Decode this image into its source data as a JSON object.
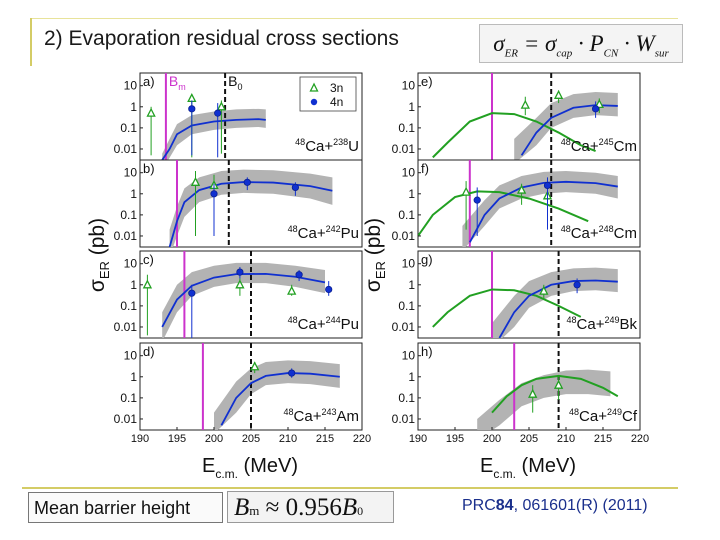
{
  "slide": {
    "title": "2) Evaporation residual cross sections",
    "formula": {
      "sigma": "σ",
      "er_sub": "ER",
      "eq": " = ",
      "cap_sub": "cap",
      "dot": " · ",
      "P": "P",
      "cn_sub": "CN",
      "W": "W",
      "sur_sub": "sur"
    },
    "footer_label": "Mean barrier height",
    "footer_formula": {
      "B": "B",
      "m": "m",
      "approx": " ≈ 0.956",
      "B0": "B",
      "zero": "0"
    },
    "reference": {
      "journal": "PRC",
      "volume": "84",
      "rest": ", 061601(R) (2011)"
    }
  },
  "chart_data": {
    "type": "line",
    "x_range": [
      190,
      220
    ],
    "y_scale": "log",
    "y_range": [
      0.003,
      40
    ],
    "xticks": [
      "190",
      "195",
      "200",
      "205",
      "210",
      "215",
      "220"
    ],
    "yticks": [
      "10",
      "1",
      "0.1",
      "0.01"
    ],
    "xlabel": {
      "main": "E",
      "sub": "c.m.",
      "unit": " (MeV)"
    },
    "ylabel": {
      "main": "σ",
      "sub": "ER",
      "unit": " (pb)"
    },
    "legend": {
      "items": [
        {
          "name": "3n",
          "symbol": "triangle",
          "color": "#22a022"
        },
        {
          "name": "4n",
          "symbol": "circle",
          "color": "#1030d0"
        }
      ],
      "placement": "top-right"
    },
    "panels": [
      {
        "id": "a",
        "label": "a)",
        "reaction": {
          "pre": "48",
          "a": "Ca+",
          "post": "238",
          "b": "U"
        },
        "column": 0,
        "row": 0,
        "bm": 193.5,
        "bm_label": "B",
        "bm_sub": "m",
        "b0": 201.5,
        "b0_label": "B",
        "b0_sub": "0",
        "legend": true,
        "curve_4n": [
          [
            193,
            0.003
          ],
          [
            194,
            0.01
          ],
          [
            195,
            0.05
          ],
          [
            197,
            0.13
          ],
          [
            200,
            0.2
          ],
          [
            203,
            0.24
          ],
          [
            206,
            0.26
          ],
          [
            207,
            0.24
          ]
        ],
        "band": [
          [
            193,
            0.001,
            0.006
          ],
          [
            195,
            0.015,
            0.15
          ],
          [
            197,
            0.05,
            0.4
          ],
          [
            200,
            0.08,
            0.6
          ],
          [
            203,
            0.1,
            0.75
          ],
          [
            206,
            0.11,
            0.8
          ],
          [
            207,
            0.1,
            0.75
          ]
        ],
        "points_3n": [
          [
            191.5,
            0.5,
            0.005,
            1
          ],
          [
            197,
            2.5,
            0.004,
            4
          ],
          [
            201,
            1.0,
            0.006,
            2
          ]
        ],
        "points_4n": [
          [
            197,
            0.8,
            0.005,
            2
          ],
          [
            200.5,
            0.5,
            0.004,
            1.5
          ]
        ]
      },
      {
        "id": "b",
        "label": "b)",
        "reaction": {
          "pre": "48",
          "a": "Ca+",
          "post": "242",
          "b": "Pu"
        },
        "column": 0,
        "row": 1,
        "bm": 195.0,
        "b0": 202.0,
        "curve_4n": [
          [
            194,
            0.003
          ],
          [
            195,
            0.05
          ],
          [
            196,
            0.4
          ],
          [
            198,
            1.5
          ],
          [
            201,
            3.0
          ],
          [
            204,
            3.6
          ],
          [
            208,
            3.4
          ],
          [
            213,
            2.3
          ],
          [
            216,
            1.4
          ]
        ],
        "band": [
          [
            194,
            0.001,
            0.02
          ],
          [
            195,
            0.01,
            0.25
          ],
          [
            196,
            0.08,
            1.8
          ],
          [
            198,
            0.4,
            6
          ],
          [
            201,
            0.9,
            12
          ],
          [
            204,
            1.1,
            14
          ],
          [
            208,
            1.0,
            13
          ],
          [
            213,
            0.6,
            9
          ],
          [
            216,
            0.3,
            6
          ]
        ],
        "points_3n": [
          [
            197.5,
            3.5,
            0.01,
            12
          ],
          [
            200,
            2.5,
            0.02,
            8
          ]
        ],
        "points_4n": [
          [
            200,
            1.0,
            0.01,
            3
          ],
          [
            204.5,
            3.5,
            1.5,
            6
          ],
          [
            211,
            2.0,
            0.8,
            3.5
          ]
        ]
      },
      {
        "id": "c",
        "label": "c)",
        "reaction": {
          "pre": "48",
          "a": "Ca+",
          "post": "244",
          "b": "Pu"
        },
        "column": 0,
        "row": 2,
        "bm": 196.0,
        "b0": 205.0,
        "curve_4n": [
          [
            193,
            0.01
          ],
          [
            195,
            0.2
          ],
          [
            197,
            0.9
          ],
          [
            200,
            2.2
          ],
          [
            203,
            3.2
          ],
          [
            207,
            3.3
          ],
          [
            211,
            2.4
          ],
          [
            215,
            1.3
          ]
        ],
        "band": [
          [
            193,
            0.002,
            0.05
          ],
          [
            195,
            0.05,
            1
          ],
          [
            197,
            0.3,
            4
          ],
          [
            200,
            0.8,
            8
          ],
          [
            203,
            1.2,
            11
          ],
          [
            207,
            1.2,
            11
          ],
          [
            211,
            0.8,
            8
          ],
          [
            215,
            0.4,
            5
          ]
        ],
        "points_3n": [
          [
            191,
            1.0,
            0.004,
            3
          ],
          [
            203.5,
            1.0,
            0.3,
            2
          ],
          [
            210.5,
            0.5,
            0.3,
            1
          ]
        ],
        "points_4n": [
          [
            197,
            0.4,
            0.003,
            1
          ],
          [
            203.5,
            4.0,
            2,
            7
          ],
          [
            211.5,
            3.0,
            1.5,
            5
          ],
          [
            215.5,
            0.6,
            0.3,
            1.5
          ]
        ]
      },
      {
        "id": "d",
        "label": "d)",
        "reaction": {
          "pre": "48",
          "a": "Ca+",
          "post": "243",
          "b": "Am"
        },
        "column": 0,
        "row": 3,
        "bm": 198.5,
        "b0": 205.0,
        "curve_4n": [
          [
            201,
            0.005
          ],
          [
            203,
            0.1
          ],
          [
            205,
            0.5
          ],
          [
            207,
            1.1
          ],
          [
            210,
            1.5
          ],
          [
            213,
            1.4
          ],
          [
            217,
            1.0
          ]
        ],
        "band": [
          [
            200,
            0.002,
            0.02
          ],
          [
            203,
            0.02,
            0.6
          ],
          [
            205,
            0.15,
            2.5
          ],
          [
            207,
            0.4,
            5
          ],
          [
            210,
            0.5,
            6
          ],
          [
            213,
            0.45,
            5.5
          ],
          [
            217,
            0.3,
            4
          ]
        ],
        "points_3n": [
          [
            205.5,
            3.0,
            1.5,
            5
          ]
        ],
        "points_4n": [
          [
            210.5,
            1.5,
            0.9,
            2.5
          ]
        ]
      },
      {
        "id": "e",
        "label": "e)",
        "reaction": {
          "pre": "48",
          "a": "Ca+",
          "post": "245",
          "b": "Cm"
        },
        "column": 1,
        "row": 0,
        "bm": 200.0,
        "b0": 208.0,
        "curve_4n": [
          [
            204,
            0.005
          ],
          [
            206,
            0.06
          ],
          [
            208,
            0.3
          ],
          [
            211,
            0.9
          ],
          [
            214,
            1.2
          ],
          [
            217,
            1.1
          ]
        ],
        "band": [
          [
            203,
            0.002,
            0.03
          ],
          [
            206,
            0.015,
            0.3
          ],
          [
            208,
            0.1,
            1.5
          ],
          [
            211,
            0.3,
            4
          ],
          [
            214,
            0.4,
            5
          ],
          [
            217,
            0.35,
            4.5
          ]
        ],
        "curve_3n": [
          [
            192,
            0.004
          ],
          [
            194,
            0.02
          ],
          [
            197,
            0.2
          ],
          [
            200,
            0.5
          ],
          [
            203,
            0.45
          ],
          [
            206,
            0.2
          ],
          [
            209,
            0.06
          ],
          [
            212,
            0.015
          ],
          [
            214,
            0.008
          ]
        ],
        "points_3n": [
          [
            204.5,
            1.2,
            0.4,
            3
          ],
          [
            209,
            3.5,
            1.5,
            6
          ],
          [
            214.5,
            1.3,
            0.5,
            2.5
          ]
        ],
        "points_4n": [
          [
            214,
            0.8,
            0.3,
            1.8
          ]
        ]
      },
      {
        "id": "f",
        "label": "f)",
        "reaction": {
          "pre": "48",
          "a": "Ca+",
          "post": "248",
          "b": "Cm"
        },
        "column": 1,
        "row": 1,
        "bm": 197.0,
        "b0": 208.0,
        "curve_4n": [
          [
            197,
            0.005
          ],
          [
            199,
            0.1
          ],
          [
            201,
            0.6
          ],
          [
            204,
            2.0
          ],
          [
            207,
            3.3
          ],
          [
            210,
            3.7
          ],
          [
            214,
            3.2
          ],
          [
            217,
            2.2
          ]
        ],
        "band": [
          [
            196,
            0.002,
            0.03
          ],
          [
            199,
            0.03,
            0.5
          ],
          [
            201,
            0.2,
            2.5
          ],
          [
            204,
            0.6,
            7
          ],
          [
            207,
            1.0,
            11
          ],
          [
            210,
            1.2,
            12
          ],
          [
            214,
            1.0,
            10
          ],
          [
            217,
            0.6,
            7
          ]
        ],
        "curve_3n": [
          [
            190,
            0.01
          ],
          [
            192,
            0.1
          ],
          [
            195,
            0.7
          ],
          [
            198,
            1.3
          ],
          [
            201,
            1.2
          ],
          [
            205,
            0.6
          ],
          [
            209,
            0.2
          ],
          [
            213,
            0.05
          ]
        ],
        "points_3n": [
          [
            196.5,
            1.2,
            0.02,
            4
          ],
          [
            204,
            1.5,
            0.3,
            3
          ],
          [
            207.5,
            0.8,
            0.4,
            1.5
          ]
        ],
        "points_4n": [
          [
            198,
            0.5,
            0.01,
            2
          ],
          [
            207.5,
            2.5,
            0.02,
            6
          ]
        ]
      },
      {
        "id": "g",
        "label": "g)",
        "reaction": {
          "pre": "48",
          "a": "Ca+",
          "post": "249",
          "b": "Bk"
        },
        "column": 1,
        "row": 2,
        "bm": 200.0,
        "b0": 209.0,
        "curve_4n": [
          [
            201,
            0.003
          ],
          [
            203,
            0.05
          ],
          [
            205,
            0.3
          ],
          [
            208,
            1.0
          ],
          [
            211,
            1.5
          ],
          [
            214,
            1.6
          ],
          [
            217,
            1.4
          ]
        ],
        "band": [
          [
            200,
            0.001,
            0.015
          ],
          [
            203,
            0.01,
            0.3
          ],
          [
            205,
            0.08,
            1.5
          ],
          [
            208,
            0.3,
            4
          ],
          [
            211,
            0.5,
            6
          ],
          [
            214,
            0.55,
            6.5
          ],
          [
            217,
            0.45,
            5.5
          ]
        ],
        "curve_3n": [
          [
            192,
            0.01
          ],
          [
            194,
            0.05
          ],
          [
            197,
            0.3
          ],
          [
            200,
            0.6
          ],
          [
            203,
            0.55
          ],
          [
            206,
            0.3
          ],
          [
            209,
            0.1
          ],
          [
            212,
            0.03
          ]
        ],
        "points_3n": [
          [
            207,
            0.5,
            0.2,
            1
          ]
        ],
        "points_4n": [
          [
            211.5,
            1.0,
            0.4,
            2
          ]
        ]
      },
      {
        "id": "h",
        "label": "h)",
        "reaction": {
          "pre": "48",
          "a": "Ca+",
          "post": "249",
          "b": "Cf"
        },
        "column": 1,
        "row": 3,
        "bm": 203.0,
        "b0": 209.0,
        "curve_4n": [],
        "band": [
          [
            198,
            0.001,
            0.01
          ],
          [
            201,
            0.005,
            0.08
          ],
          [
            204,
            0.04,
            0.5
          ],
          [
            207,
            0.1,
            1.2
          ],
          [
            210,
            0.15,
            2
          ],
          [
            213,
            0.15,
            2.2
          ],
          [
            216,
            0.12,
            1.8
          ]
        ],
        "curve_3n": [
          [
            200,
            0.02
          ],
          [
            202,
            0.12
          ],
          [
            204,
            0.4
          ],
          [
            206,
            0.8
          ],
          [
            209,
            1.1
          ],
          [
            212,
            0.8
          ],
          [
            215,
            0.3
          ],
          [
            217,
            0.12
          ]
        ],
        "points_3n": [
          [
            205.5,
            0.15,
            0.02,
            0.4
          ],
          [
            209,
            0.4,
            0.08,
            1.2
          ]
        ],
        "points_4n": []
      }
    ]
  }
}
